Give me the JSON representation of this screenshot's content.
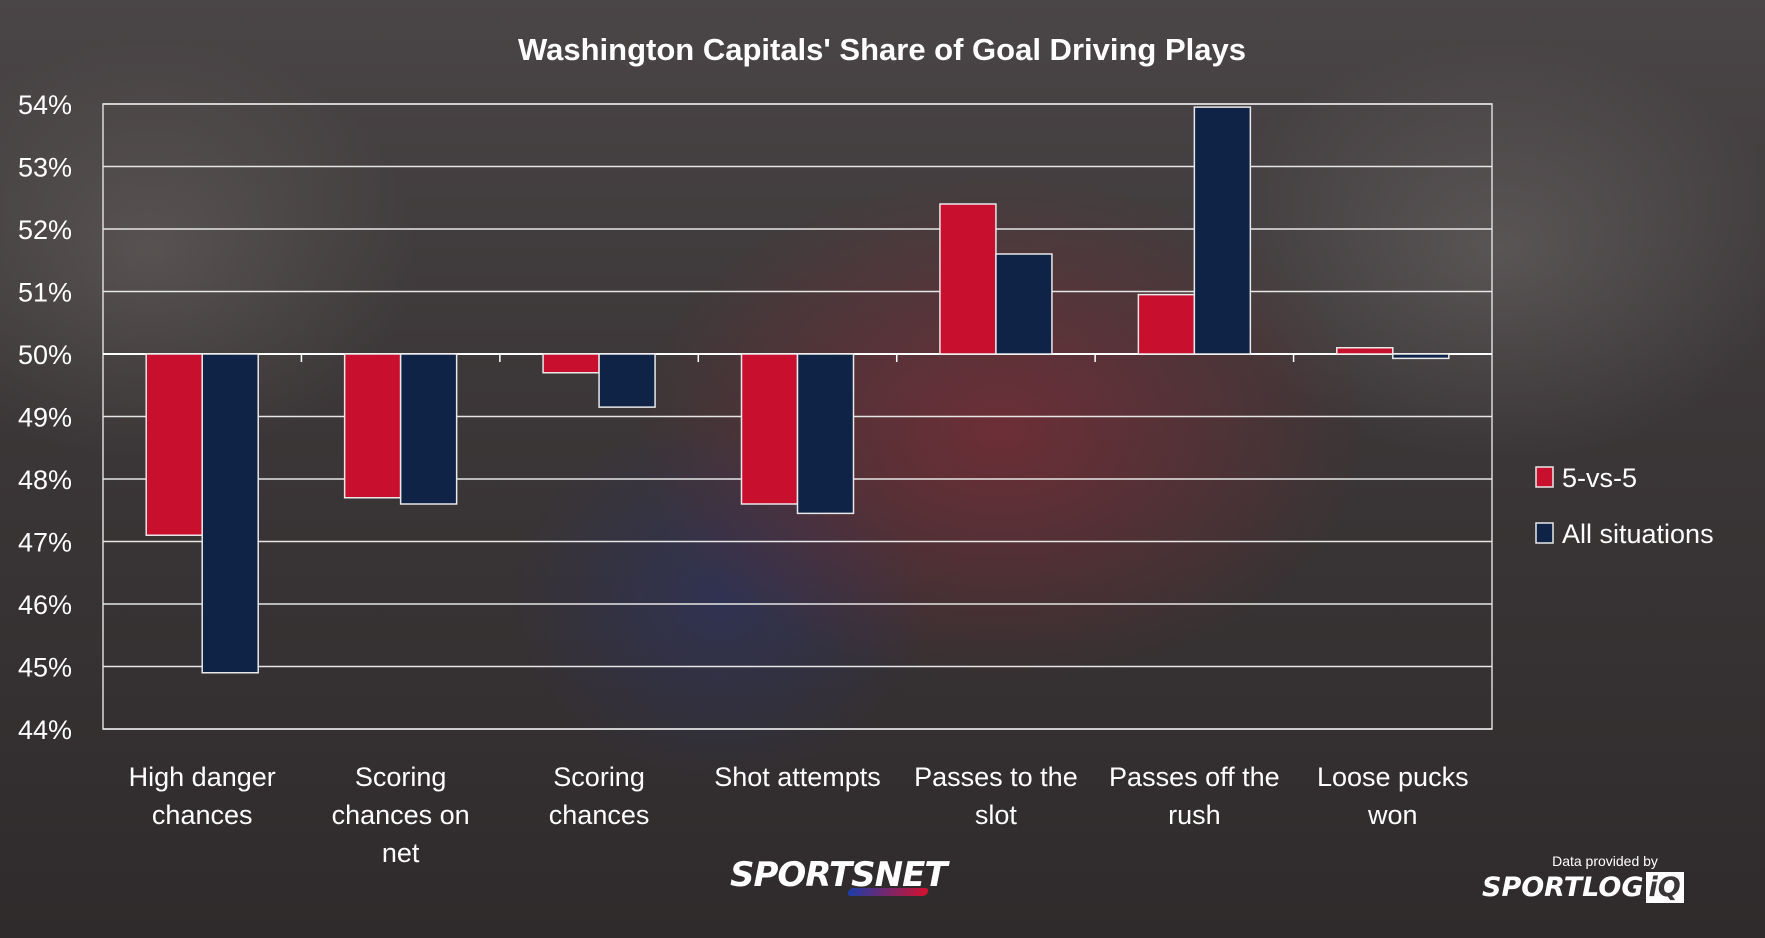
{
  "chart_data": {
    "type": "bar",
    "title": "Washington Capitals' Share of Goal Driving Plays",
    "categories": [
      [
        "High danger",
        "chances"
      ],
      [
        "Scoring",
        "chances on",
        "net"
      ],
      [
        "Scoring",
        "chances"
      ],
      [
        "Shot attempts"
      ],
      [
        "Passes to the",
        "slot"
      ],
      [
        "Passes off the",
        "rush"
      ],
      [
        "Loose pucks",
        "won"
      ]
    ],
    "series": [
      {
        "name": "5-vs-5",
        "color": "#c8102e",
        "values": [
          47.1,
          47.7,
          49.7,
          47.6,
          52.4,
          50.95,
          50.1
        ]
      },
      {
        "name": "All situations",
        "color": "#0f2347",
        "values": [
          44.9,
          47.6,
          49.15,
          47.45,
          51.6,
          53.95,
          49.93
        ]
      }
    ],
    "baseline": 50,
    "ylim": [
      44,
      54
    ],
    "y_ticks": [
      "44%",
      "45%",
      "46%",
      "47%",
      "48%",
      "49%",
      "50%",
      "51%",
      "52%",
      "53%",
      "54%"
    ],
    "grid": true,
    "legend_position": "right"
  },
  "branding": {
    "broadcaster_logo": "SPORTSNET",
    "credit_label": "Data provided by",
    "provider_logo_main": "SPORTLOG",
    "provider_logo_suffix": "iQ"
  }
}
